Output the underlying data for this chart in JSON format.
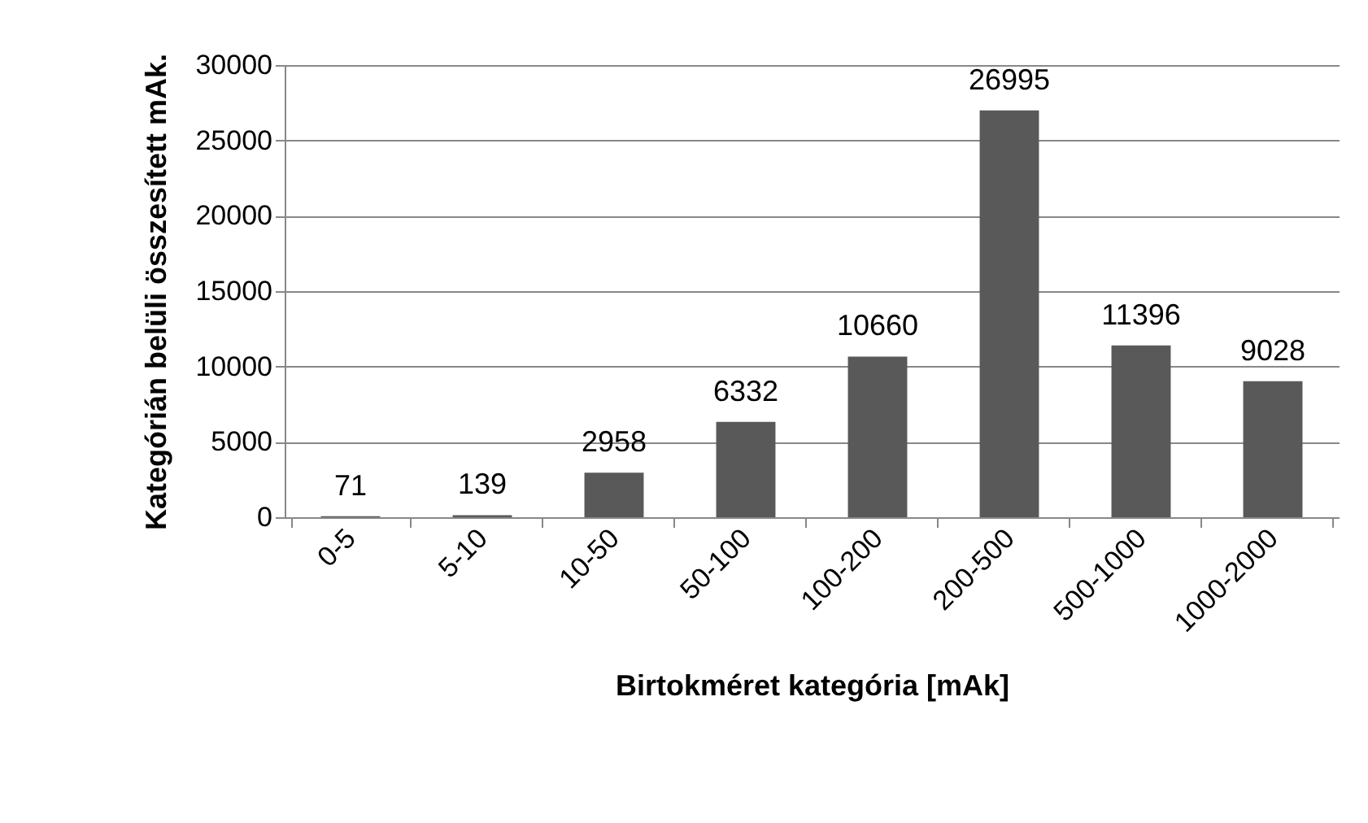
{
  "chart_data": {
    "type": "bar",
    "xlabel": "Birtokméret kategória [mAk]",
    "ylabel": "Kategórián belüli összesített mAk.",
    "categories": [
      "0-5",
      "5-10",
      "10-50",
      "50-100",
      "100-200",
      "200-500",
      "500-1000",
      "1000-2000"
    ],
    "values": [
      71,
      139,
      2958,
      6332,
      10660,
      26995,
      11396,
      9028
    ],
    "color": "#595959",
    "ylim": [
      0,
      30000
    ],
    "yticks": [
      0,
      5000,
      10000,
      15000,
      20000,
      25000,
      30000
    ],
    "grid": "y",
    "data_labels": true
  }
}
